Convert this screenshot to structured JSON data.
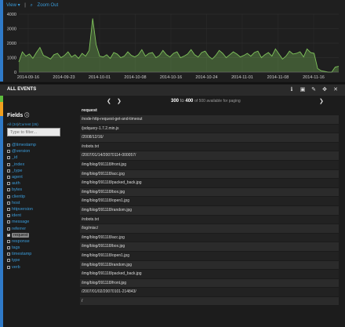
{
  "toolbar": {
    "view_label": "View ▾",
    "separator": "|",
    "zoom_label": "Zoom Out"
  },
  "colors": {
    "accent_blue": "#3a9bd9",
    "chart_green": "#7fc35b",
    "strip_blue": "#2f7ac8",
    "strip_green": "#5dbb3e",
    "strip_orange": "#f0a020"
  },
  "chart_data": {
    "type": "area",
    "x_ticks": [
      "2014-09-16",
      "2014-09-23",
      "2014-10-01",
      "2014-10-08",
      "2014-10-16",
      "2014-10-24",
      "2014-11-01",
      "2014-11-08",
      "2014-11-16"
    ],
    "y_ticks": [
      "0",
      "1000",
      "2000",
      "3000",
      "4000"
    ],
    "ylim": [
      0,
      4000
    ],
    "values": [
      700,
      1400,
      1100,
      1250,
      950,
      1350,
      1700,
      1150,
      1050,
      900,
      1200,
      1300,
      1000,
      1150,
      1400,
      1050,
      1200,
      950,
      1300,
      1100,
      1500,
      3700,
      1900,
      1100,
      1050,
      1200,
      950,
      1350,
      1250,
      1000,
      1100,
      1400,
      1150,
      1050,
      1200,
      1550,
      1100,
      1300,
      1350,
      1000,
      1150,
      1500,
      1200,
      1050,
      1300,
      1400,
      1000,
      1100,
      1250,
      1550,
      1200,
      1050,
      1350,
      1450,
      1100,
      900,
      1150,
      1500,
      1300,
      1000,
      1200,
      1400,
      1250,
      1050,
      1150,
      1300,
      1100,
      1350,
      1450,
      1000,
      1200,
      1350,
      1100,
      1600,
      1250,
      900,
      1100,
      1450,
      1250,
      1300,
      1400,
      1050,
      1600,
      1350,
      1300,
      250,
      100,
      50,
      0,
      0,
      350,
      400
    ],
    "grid": true
  },
  "events": {
    "title": "ALL EVENTS",
    "icons": [
      "info-icon",
      "save-icon",
      "edit-icon",
      "move-icon",
      "close-icon"
    ],
    "icon_glyphs": [
      "ℹ",
      "▣",
      "✎",
      "✥",
      "✕"
    ]
  },
  "pager": {
    "prev_glyph": "❮",
    "next_glyph": "❯",
    "next2_glyph": "❯",
    "range_start": "300",
    "range_to": "to",
    "range_end": "400",
    "of_text": "of 500 available for paging"
  },
  "fields": {
    "title": "Fields",
    "info_glyph": "ⓘ",
    "all_label": "All (34)",
    "sub_separator": "/",
    "current_label": "Current (26)",
    "filter_placeholder": "Type to filter...",
    "items": [
      {
        "name": "@timestamp",
        "checked": false
      },
      {
        "name": "@version",
        "checked": false
      },
      {
        "name": "_id",
        "checked": false
      },
      {
        "name": "_index",
        "checked": false
      },
      {
        "name": "_type",
        "checked": false
      },
      {
        "name": "agent",
        "checked": false
      },
      {
        "name": "auth",
        "checked": false
      },
      {
        "name": "bytes",
        "checked": false
      },
      {
        "name": "clientip",
        "checked": false
      },
      {
        "name": "host",
        "checked": false
      },
      {
        "name": "httpversion",
        "checked": false
      },
      {
        "name": "ident",
        "checked": false
      },
      {
        "name": "message",
        "checked": false
      },
      {
        "name": "referrer",
        "checked": false
      },
      {
        "name": "request",
        "checked": true
      },
      {
        "name": "response",
        "checked": false
      },
      {
        "name": "tags",
        "checked": false
      },
      {
        "name": "timestamp",
        "checked": false
      },
      {
        "name": "type",
        "checked": false
      },
      {
        "name": "verb",
        "checked": false
      }
    ]
  },
  "table": {
    "column": "request",
    "rows": [
      "/node-http-request-get-and-timeout",
      "/jsdquery-1.7.2.min.js",
      "/2008/12/16/",
      "/robots.txt",
      "/2007/01/14/20070114-000057/",
      "/img/blog/091118/front.jpg",
      "/img/blog/091118/acc.jpg",
      "/img/blog/091118/packed_back.jpg",
      "/img/blog/091118/box.jpg",
      "/img/blog/091118/open1.jpg",
      "/img/blog/091118/random.jpg",
      "/robots.txt",
      "/log/misc/",
      "/img/blog/091118/acc.jpg",
      "/img/blog/091118/box.jpg",
      "/img/blog/091118/open1.jpg",
      "/img/blog/091118/random.jpg",
      "/img/blog/091118/packed_back.jpg",
      "/img/blog/091118/front.jpg",
      "/2007/01/02/20070101-214843/",
      "/"
    ]
  }
}
